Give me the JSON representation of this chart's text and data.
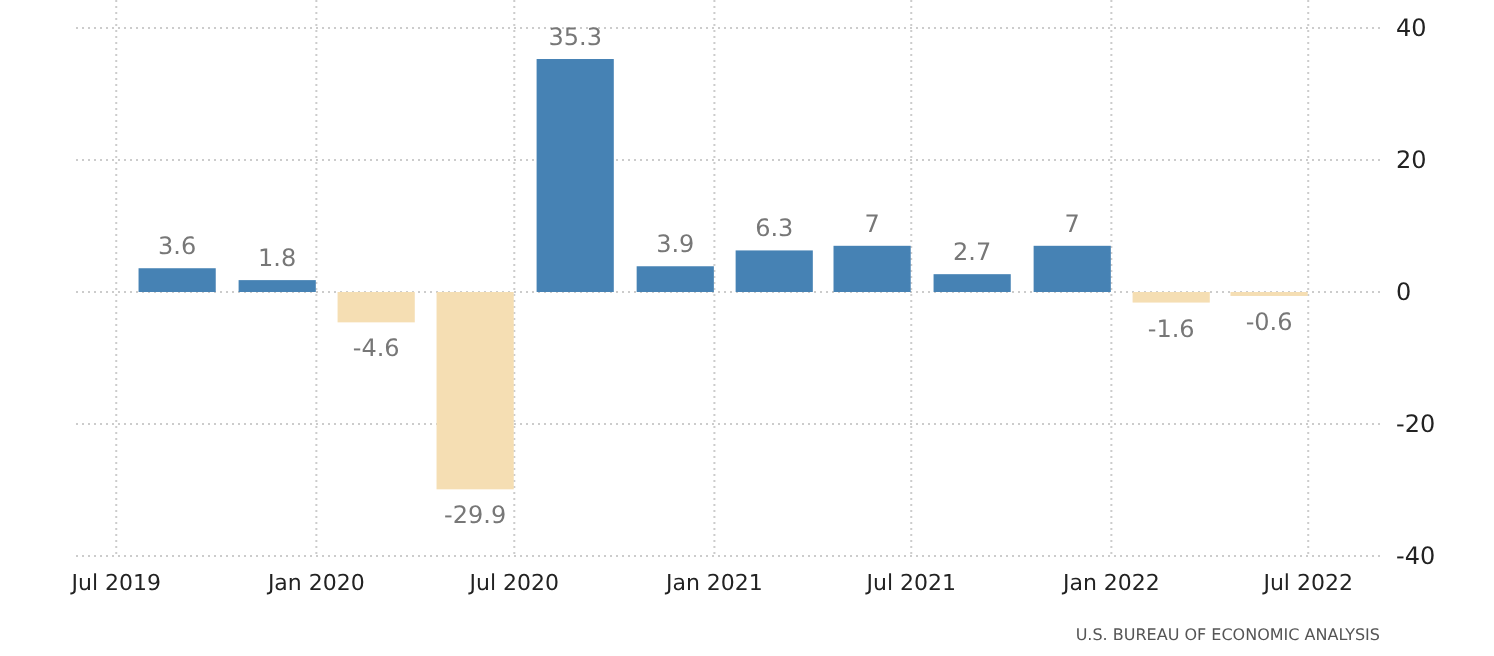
{
  "chart_data": {
    "type": "bar",
    "x": [
      "2019-08-26",
      "2019-11-26",
      "2020-02-25",
      "2020-05-26",
      "2020-08-26",
      "2020-11-26",
      "2021-02-25",
      "2021-05-26",
      "2021-08-26",
      "2021-11-26",
      "2022-02-25",
      "2022-05-26"
    ],
    "values": [
      3.6,
      1.8,
      -4.6,
      -29.9,
      35.3,
      3.9,
      6.3,
      7,
      2.7,
      7,
      -1.6,
      -0.6
    ],
    "colors": [
      "#4682b4",
      "#4682b4",
      "#f5deb3",
      "#f5deb3",
      "#4682b4",
      "#4682b4",
      "#4682b4",
      "#4682b4",
      "#4682b4",
      "#4682b4",
      "#f5deb3",
      "#f5deb3"
    ],
    "data_labels": true,
    "xlim": [
      "2019-05-25",
      "2022-09-05"
    ],
    "xticks": [
      {
        "value": "2019-07-01",
        "label": "Jul 2019"
      },
      {
        "value": "2020-01-01",
        "label": "Jan 2020"
      },
      {
        "value": "2020-07-01",
        "label": "Jul 2020"
      },
      {
        "value": "2021-01-01",
        "label": "Jan 2021"
      },
      {
        "value": "2021-07-01",
        "label": "Jul 2021"
      },
      {
        "value": "2022-01-01",
        "label": "Jan 2022"
      },
      {
        "value": "2022-07-01",
        "label": "Jul 2022"
      }
    ],
    "ylim": [
      -40,
      40
    ],
    "yticks": [
      -40,
      -20,
      0,
      20,
      40
    ],
    "grid": true,
    "annotations": [
      "U.S. BUREAU OF ECONOMIC ANALYSIS"
    ]
  }
}
